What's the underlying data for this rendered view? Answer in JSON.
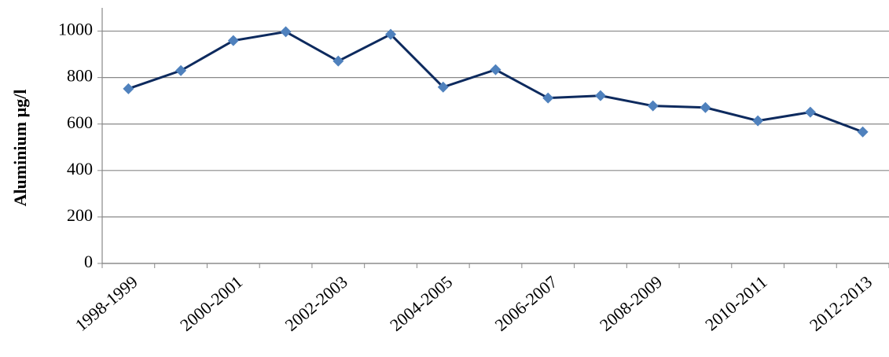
{
  "chart_data": {
    "type": "line",
    "y_label": "Aluminium µg/l",
    "categories": [
      "1998-1999",
      null,
      "2000-2001",
      null,
      "2002-2003",
      null,
      "2004-2005",
      null,
      "2006-2007",
      null,
      "2008-2009",
      null,
      "2010-2011",
      null,
      "2012-2013"
    ],
    "series": [
      {
        "name": "Aluminium",
        "color": "#0d2a5e",
        "marker_color": "#4f81bd",
        "values": [
          752,
          830,
          959,
          997,
          871,
          986,
          759,
          834,
          712,
          722,
          678,
          671,
          614,
          651,
          566
        ]
      }
    ],
    "ylim": [
      0,
      1100
    ],
    "yticks": [
      0,
      200,
      400,
      600,
      800,
      1000
    ],
    "grid": true
  }
}
